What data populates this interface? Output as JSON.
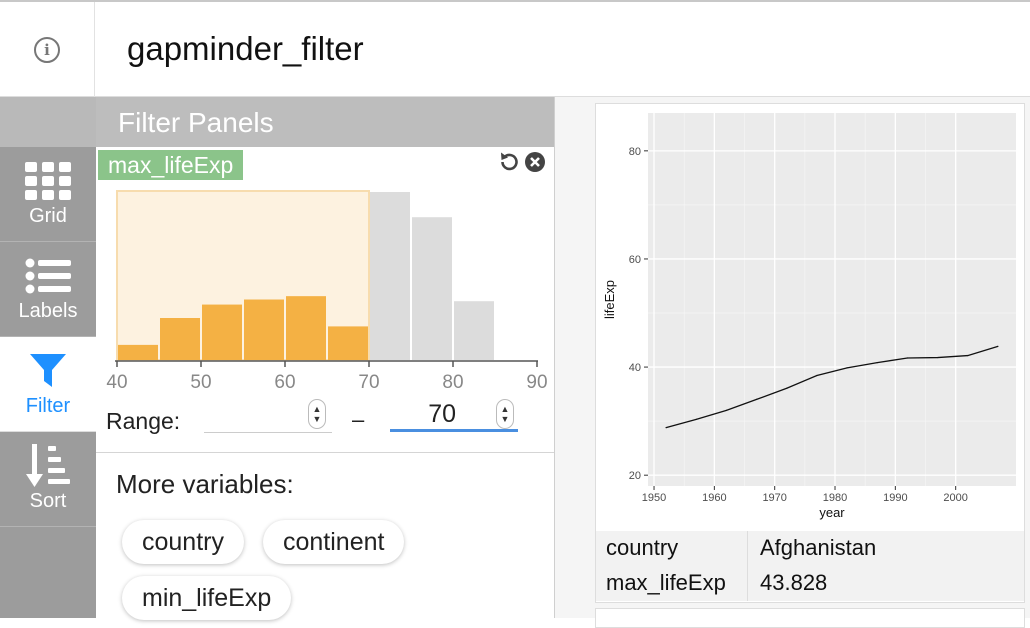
{
  "app": {
    "title": "gapminder_filter"
  },
  "nav": {
    "items": [
      {
        "label": "Grid",
        "icon": "grid-icon"
      },
      {
        "label": "Labels",
        "icon": "labels-icon"
      },
      {
        "label": "Filter",
        "icon": "filter-icon"
      },
      {
        "label": "Sort",
        "icon": "sort-icon"
      }
    ],
    "active": "Filter"
  },
  "filter_panel": {
    "header": "Filter Panels",
    "variable": "max_lifeExp",
    "range_label": "Range:",
    "range_min": "",
    "range_max": "70",
    "dash": "–",
    "more_label": "More variables:",
    "more_variables": [
      "country",
      "continent",
      "min_lifeExp"
    ],
    "colors": {
      "selected": "#f4b144",
      "unselected": "#dcdcdc",
      "highlight": "#fdf2e0",
      "chip": "#8bc48a"
    }
  },
  "histogram": {
    "bins": [
      [
        40,
        45
      ],
      [
        45,
        50
      ],
      [
        50,
        55
      ],
      [
        55,
        60
      ],
      [
        60,
        65
      ],
      [
        65,
        70
      ],
      [
        70,
        75
      ],
      [
        75,
        80
      ],
      [
        80,
        85
      ]
    ],
    "relative_counts": [
      0.09,
      0.25,
      0.33,
      0.36,
      0.38,
      0.2,
      1.0,
      0.85,
      0.35
    ],
    "ticks": [
      "40",
      "50",
      "60",
      "70",
      "80",
      "90"
    ],
    "selected_range": [
      40,
      70
    ]
  },
  "panel": {
    "meta": [
      {
        "key": "country",
        "value": "Afghanistan"
      },
      {
        "key": "max_lifeExp",
        "value": "43.828"
      }
    ]
  },
  "chart_data": {
    "type": "line",
    "xlabel": "year",
    "ylabel": "lifeExp",
    "x": [
      1952,
      1957,
      1962,
      1967,
      1972,
      1977,
      1982,
      1987,
      1992,
      1997,
      2002,
      2007
    ],
    "series": [
      {
        "values": [
          28.801,
          30.332,
          31.997,
          34.02,
          36.088,
          38.438,
          39.854,
          40.822,
          41.674,
          41.763,
          42.129,
          43.828
        ]
      }
    ],
    "xlim": [
      1949,
      2010
    ],
    "ylim": [
      18,
      87
    ],
    "xticks": [
      "1950",
      "1960",
      "1970",
      "1980",
      "1990",
      "2000"
    ],
    "yticks": [
      "20",
      "40",
      "60",
      "80"
    ],
    "grid": true
  }
}
